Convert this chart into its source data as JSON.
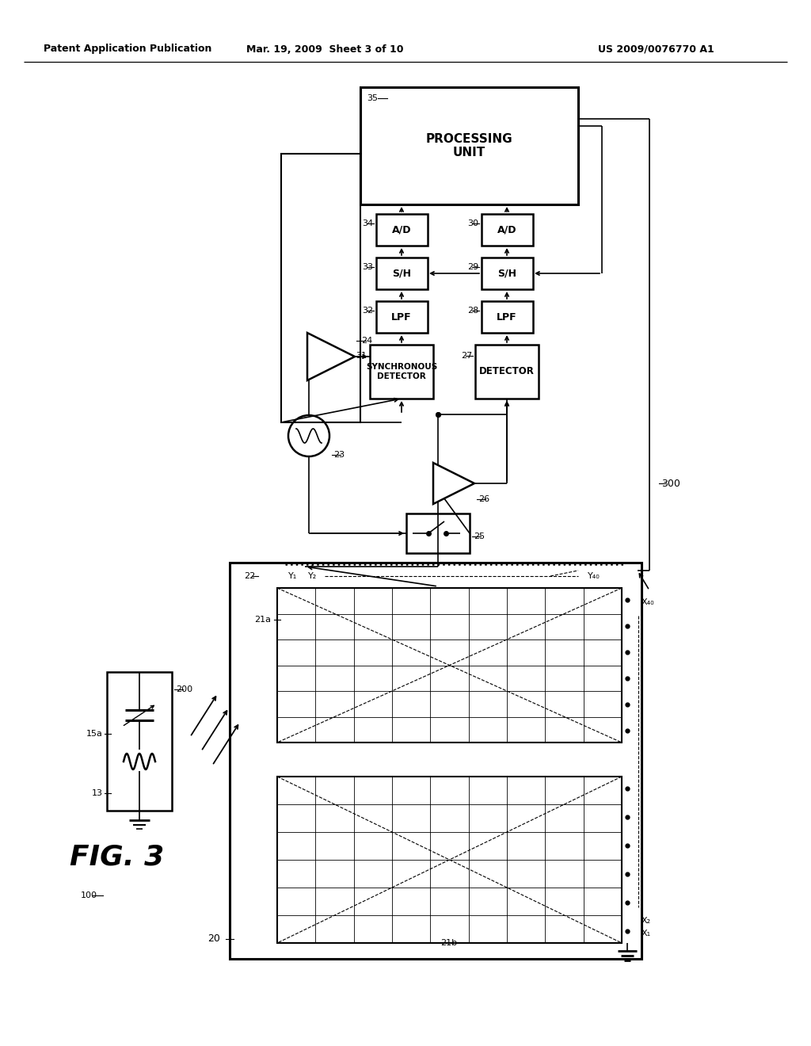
{
  "header_left": "Patent Application Publication",
  "header_mid": "Mar. 19, 2009  Sheet 3 of 10",
  "header_right": "US 2009/0076770 A1",
  "bg": "#ffffff",
  "lc": "#000000"
}
